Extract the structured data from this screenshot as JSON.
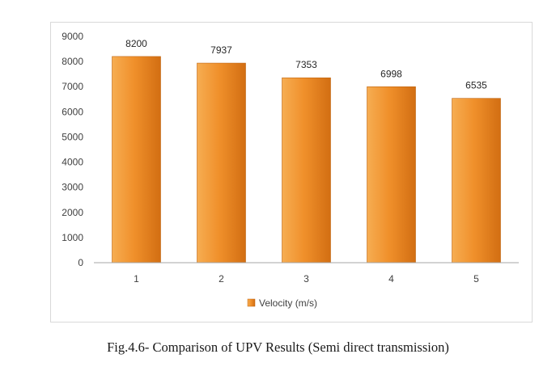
{
  "caption": "Fig.4.6- Comparison of UPV Results (Semi direct transmission)",
  "chart_data": {
    "type": "bar",
    "categories": [
      "1",
      "2",
      "3",
      "4",
      "5"
    ],
    "series": [
      {
        "name": "Velocity (m/s)",
        "values": [
          8200,
          7937,
          7353,
          6998,
          6535
        ]
      }
    ],
    "data_labels": [
      "8200",
      "7937",
      "7353",
      "6998",
      "6535"
    ],
    "y_ticks": [
      "0",
      "1000",
      "2000",
      "3000",
      "4000",
      "5000",
      "6000",
      "7000",
      "8000",
      "9000"
    ],
    "ylim": [
      0,
      9000
    ],
    "title": "",
    "xlabel": "",
    "ylabel": "",
    "grid": false,
    "legend_position": "bottom",
    "colors": {
      "bar_light": "#f6ad52",
      "bar_mid": "#f0902b",
      "bar_dark": "#d26e12",
      "bar_edge": "#bf6410"
    }
  }
}
